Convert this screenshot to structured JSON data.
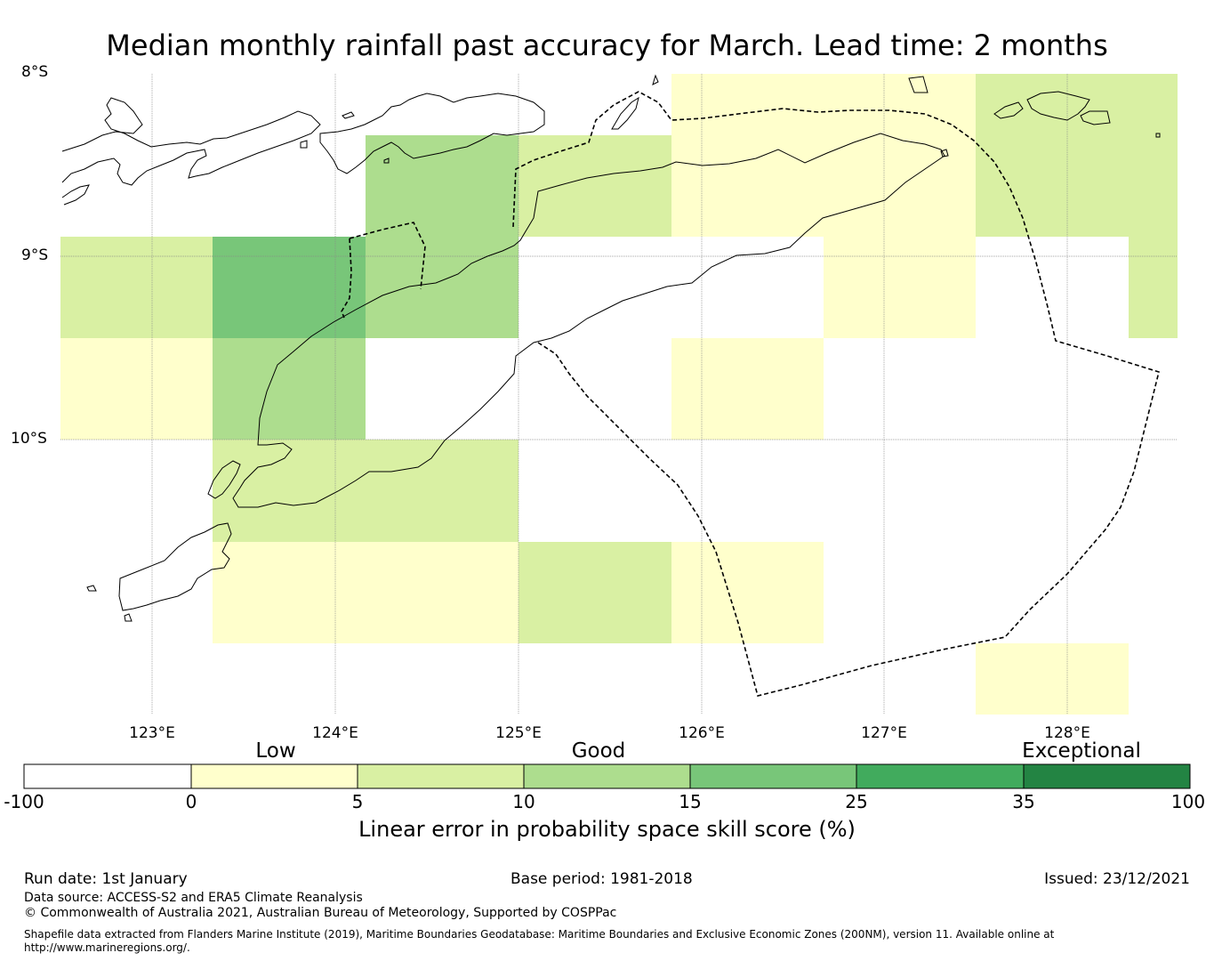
{
  "title": "Median monthly rainfall past accuracy for March. Lead time: 2 months",
  "map": {
    "lat_labels": [
      "8°S",
      "9°S",
      "10°S"
    ],
    "lon_labels": [
      "123°E",
      "124°E",
      "125°E",
      "126°E",
      "127°E",
      "128°E"
    ],
    "lon_range": [
      122.5,
      128.6
    ],
    "lat_range": [
      -8.0,
      -11.5
    ],
    "grid_cell_deg": 0.833
  },
  "colorbar": {
    "categories": [
      "Low",
      "Good",
      "Exceptional"
    ],
    "ticks": [
      "-100",
      "0",
      "5",
      "10",
      "15",
      "25",
      "35",
      "100"
    ],
    "colors": [
      "#ffffff",
      "#ffffcc",
      "#d9f0a3",
      "#addd8e",
      "#78c679",
      "#41ab5d",
      "#238443"
    ],
    "label": "Linear error in probability space skill score (%)"
  },
  "footer": {
    "run_date": "Run date: 1st January",
    "base_period": "Base period: 1981-2018",
    "issued": "Issued: 23/12/2021",
    "data_source": "Data source: ACCESS-S2 and ERA5 Climate Reanalysis",
    "copyright": "© Commonwealth of Australia 2021, Australian Bureau of Meteorology, Supported by COSPPac",
    "shapefile_line1": "Shapefile data extracted from Flanders Marine Institute (2019), Maritime Boundaries Geodatabase: Maritime Boundaries and Exclusive Economic Zones (200NM), version 11. Available online at",
    "shapefile_line2": "http://www.marineregions.org/."
  }
}
